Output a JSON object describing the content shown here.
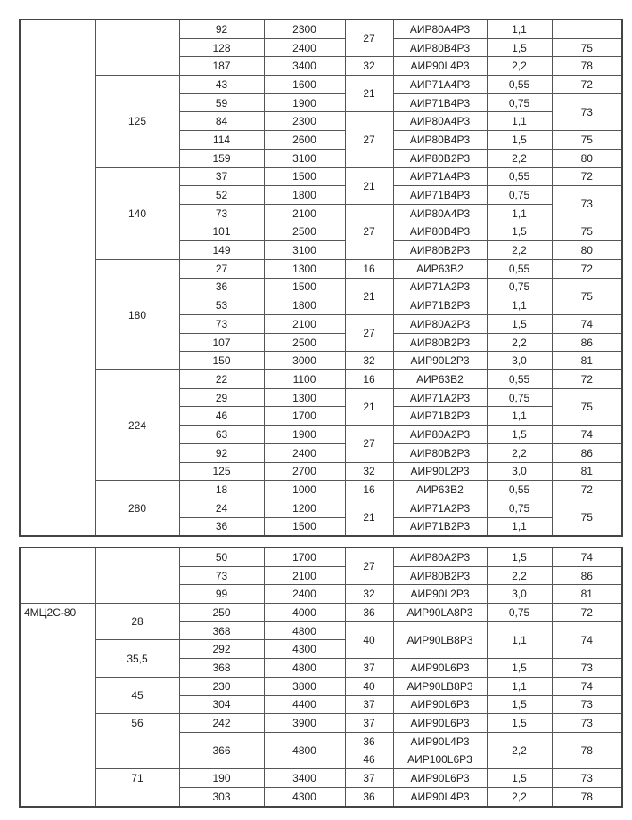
{
  "table1": {
    "rows": [
      [
        "",
        "",
        "92",
        "2300",
        "27",
        "АИР80А4Р3",
        "1,1",
        ""
      ],
      [
        "^",
        "^",
        "128",
        "2400",
        "^",
        "АИР80В4Р3",
        "1,5",
        "75"
      ],
      [
        "^",
        "^",
        "187",
        "3400",
        "32",
        "АИР90L4Р3",
        "2,2",
        "78"
      ],
      [
        "^",
        "125",
        "43",
        "1600",
        "21",
        "АИР71А4Р3",
        "0,55",
        "72"
      ],
      [
        "^",
        "^",
        "59",
        "1900",
        "^",
        "АИР71В4Р3",
        "0,75",
        "73"
      ],
      [
        "^",
        "^",
        "84",
        "2300",
        "27",
        "АИР80А4Р3",
        "1,1",
        "^"
      ],
      [
        "^",
        "^",
        "114",
        "2600",
        "^",
        "АИР80В4Р3",
        "1,5",
        "75"
      ],
      [
        "^",
        "^",
        "159",
        "3100",
        "^",
        "АИР80В2Р3",
        "2,2",
        "80"
      ],
      [
        "^",
        "140",
        "37",
        "1500",
        "21",
        "АИР71А4Р3",
        "0,55",
        "72"
      ],
      [
        "^",
        "^",
        "52",
        "1800",
        "^",
        "АИР71В4Р3",
        "0,75",
        "73"
      ],
      [
        "^",
        "^",
        "73",
        "2100",
        "27",
        "АИР80А4Р3",
        "1,1",
        "^"
      ],
      [
        "^",
        "^",
        "101",
        "2500",
        "^",
        "АИР80В4Р3",
        "1,5",
        "75"
      ],
      [
        "^",
        "^",
        "149",
        "3100",
        "^",
        "АИР80В2Р3",
        "2,2",
        "80"
      ],
      [
        "^",
        "180",
        "27",
        "1300",
        "16",
        "АИР63В2",
        "0,55",
        "72"
      ],
      [
        "^",
        "^",
        "36",
        "1500",
        "21",
        "АИР71А2Р3",
        "0,75",
        "75"
      ],
      [
        "^",
        "^",
        "53",
        "1800",
        "^",
        "АИР71В2Р3",
        "1,1",
        "^"
      ],
      [
        "^",
        "^",
        "73",
        "2100",
        "27",
        "АИР80А2Р3",
        "1,5",
        "74"
      ],
      [
        "^",
        "^",
        "107",
        "2500",
        "^",
        "АИР80В2Р3",
        "2,2",
        "86"
      ],
      [
        "^",
        "^",
        "150",
        "3000",
        "32",
        "АИР90L2Р3",
        "3,0",
        "81"
      ],
      [
        "^",
        "224",
        "22",
        "1100",
        "16",
        "АИР63В2",
        "0,55",
        "72"
      ],
      [
        "^",
        "^",
        "29",
        "1300",
        "21",
        "АИР71А2Р3",
        "0,75",
        "75"
      ],
      [
        "^",
        "^",
        "46",
        "1700",
        "^",
        "АИР71В2Р3",
        "1,1",
        "^"
      ],
      [
        "^",
        "^",
        "63",
        "1900",
        "27",
        "АИР80А2Р3",
        "1,5",
        "74"
      ],
      [
        "^",
        "^",
        "92",
        "2400",
        "^",
        "АИР80В2Р3",
        "2,2",
        "86"
      ],
      [
        "^",
        "^",
        "125",
        "2700",
        "32",
        "АИР90L2Р3",
        "3,0",
        "81"
      ],
      [
        "^",
        "280",
        "18",
        "1000",
        "16",
        "АИР63В2",
        "0,55",
        "72"
      ],
      [
        "^",
        "^",
        "24",
        "1200",
        "21",
        "АИР71А2Р3",
        "0,75",
        "75"
      ],
      [
        "^",
        "^",
        "36",
        "1500",
        "^",
        "АИР71В2Р3",
        "1,1",
        "^"
      ]
    ]
  },
  "table2": {
    "rows": [
      [
        "",
        "",
        "50",
        "1700",
        "27",
        "АИР80А2Р3",
        "1,5",
        "74"
      ],
      [
        "^",
        "^",
        "73",
        "2100",
        "^",
        "АИР80В2Р3",
        "2,2",
        "86"
      ],
      [
        "^",
        "^",
        "99",
        "2400",
        "32",
        "АИР90L2Р3",
        "3,0",
        "81"
      ],
      [
        "4МЦ2С-80",
        "28",
        "250",
        "4000",
        "36",
        "АИР90LA8Р3",
        "0,75",
        "72"
      ],
      [
        "^",
        "^",
        "368",
        "4800",
        "40",
        "АИР90LB8Р3",
        "1,1",
        "74"
      ],
      [
        "^",
        "35,5",
        "292",
        "4300",
        "^",
        "^",
        "^",
        "^"
      ],
      [
        "^",
        "^",
        "368",
        "4800",
        "37",
        "АИР90L6Р3",
        "1,5",
        "73"
      ],
      [
        "^",
        "45",
        "230",
        "3800",
        "40",
        "АИР90LB8Р3",
        "1,1",
        "74"
      ],
      [
        "^",
        "^",
        "304",
        "4400",
        "37",
        "АИР90L6Р3",
        "1,5",
        "73"
      ],
      [
        "^",
        "56",
        "242",
        "3900",
        "37",
        "АИР90L6Р3",
        "1,5",
        "73"
      ],
      [
        "^",
        "^",
        "366",
        "4800",
        "36",
        "АИР90L4Р3",
        "2,2",
        "78"
      ],
      [
        "^",
        "^",
        "^",
        "^",
        "46",
        "АИР100L6Р3",
        "^",
        "^"
      ],
      [
        "^",
        "71",
        "190",
        "3400",
        "37",
        "АИР90L6Р3",
        "1,5",
        "73"
      ],
      [
        "^",
        "^",
        "303",
        "4300",
        "36",
        "АИР90L4Р3",
        "2,2",
        "78"
      ]
    ]
  }
}
